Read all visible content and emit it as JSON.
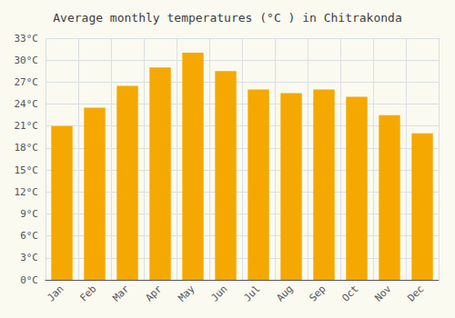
{
  "chart_data": {
    "type": "bar",
    "title": "Average monthly temperatures (°C ) in Chitrakonda",
    "categories": [
      "Jan",
      "Feb",
      "Mar",
      "Apr",
      "May",
      "Jun",
      "Jul",
      "Aug",
      "Sep",
      "Oct",
      "Nov",
      "Dec"
    ],
    "values": [
      21.0,
      23.5,
      26.5,
      29.0,
      31.0,
      28.5,
      26.0,
      25.5,
      26.0,
      25.0,
      22.5,
      20.0
    ],
    "color": "#F5A800",
    "ylim": [
      0,
      33
    ],
    "yticks": [
      {
        "value": 0,
        "label": "0°C"
      },
      {
        "value": 3,
        "label": "3°C"
      },
      {
        "value": 6,
        "label": "6°C"
      },
      {
        "value": 9,
        "label": "9°C"
      },
      {
        "value": 12,
        "label": "12°C"
      },
      {
        "value": 15,
        "label": "15°C"
      },
      {
        "value": 18,
        "label": "18°C"
      },
      {
        "value": 21,
        "label": "21°C"
      },
      {
        "value": 24,
        "label": "24°C"
      },
      {
        "value": 27,
        "label": "27°C"
      },
      {
        "value": 30,
        "label": "30°C"
      },
      {
        "value": 33,
        "label": "33°C"
      }
    ],
    "grid": true
  }
}
